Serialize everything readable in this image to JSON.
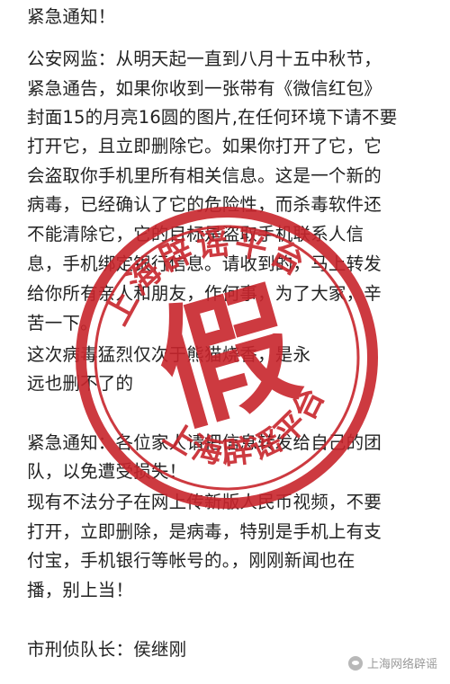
{
  "notice": {
    "lines": [
      "紧急通知！",
      " 公安网监：从明天起一直到八月十五中秋节，",
      "紧急通告，如果你收到一张带有《微信红包》",
      "封面15的月亮16圆的图片,在任何环境下请不要",
      "打开它，且立即删除它。如果你打开了它，它",
      "会盗取你手机里所有相关信息。这是一个新的",
      "病毒，已经确认了它的危险性，而杀毒软件还",
      "不能清除它，它的目标是盗取手机联系人信",
      "息，手机绑定银行信息。请收到的，马上转发",
      "给你所有亲人和朋友，作何事，为了大家，辛",
      "苦一下。",
      " 这次病毒猛烈仅次于熊猫烧香，是永",
      "远也删不了的",
      "",
      "紧急通知：各位家人请把信息转发给自己的团",
      "队，以免遭受损失！",
      " 现有不法分子在网上传新版人民币视频，不要",
      "打开，立即删除，是病毒，特别是手机上有支",
      "付宝，手机银行等帐号的。，刚刚新闻也在",
      "播，别上当！",
      "",
      "市刑侦队长：侯继刚"
    ]
  },
  "stamp": {
    "top_text": "上海辟谣平台",
    "bottom_text": "上海辟谣平台",
    "center_char": "假",
    "color": "#c8252c"
  },
  "watermark": {
    "icon": "wechat-icon",
    "text": "上海网络辟谣"
  }
}
